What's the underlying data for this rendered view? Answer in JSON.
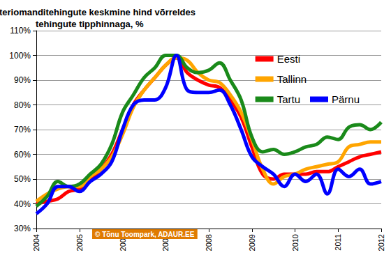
{
  "chart_data": {
    "type": "line",
    "title": "Korteriomanditehingute keskmine hind võrreldes\ntehingute tipphinnaga, %",
    "annotations": [
      "© Tõnu Toompark, ADAUR.EE"
    ],
    "x": [
      2004,
      2004.25,
      2004.5,
      2004.75,
      2005,
      2005.25,
      2005.5,
      2005.75,
      2006,
      2006.25,
      2006.5,
      2006.75,
      2007,
      2007.25,
      2007.5,
      2007.75,
      2008,
      2008.25,
      2008.5,
      2008.75,
      2009,
      2009.25,
      2009.5,
      2009.75,
      2010,
      2010.25,
      2010.5,
      2010.75,
      2011,
      2011.25,
      2011.5,
      2011.75,
      2012
    ],
    "series": [
      {
        "name": "Eesti",
        "color": "#ff0000",
        "values": [
          40,
          41,
          42,
          45,
          46,
          50,
          54,
          60,
          70,
          80,
          86,
          91,
          96,
          99,
          93,
          90,
          88,
          87,
          82,
          75,
          63,
          52,
          50,
          52,
          52,
          52,
          53,
          53,
          55,
          57,
          59,
          60,
          61
        ]
      },
      {
        "name": "Tallinn",
        "color": "#ffa500",
        "values": [
          41,
          44,
          46,
          47,
          47,
          51,
          54,
          59,
          68,
          79,
          86,
          91,
          96,
          99,
          98,
          93,
          90,
          89,
          84,
          77,
          66,
          54,
          48,
          51,
          52,
          54,
          55,
          56,
          57,
          63,
          64,
          65,
          65
        ]
      },
      {
        "name": "Tartu",
        "color": "#1a8a1a",
        "values": [
          39,
          43,
          49,
          47,
          48,
          52,
          56,
          64,
          77,
          84,
          91,
          95,
          100,
          100,
          95,
          93,
          94,
          97,
          90,
          82,
          67,
          61,
          62,
          60,
          61,
          63,
          64,
          67,
          66,
          71,
          72,
          70,
          73
        ]
      },
      {
        "name": "Pärnu",
        "color": "#0000ff",
        "values": [
          36,
          40,
          47,
          47,
          45,
          49,
          52,
          57,
          70,
          80,
          82,
          82,
          87,
          100,
          86,
          85,
          85,
          86,
          80,
          70,
          59,
          55,
          52,
          47,
          52,
          49,
          52,
          44,
          54,
          51,
          54,
          48,
          49
        ]
      }
    ],
    "xlim": [
      2004,
      2012
    ],
    "xticks": [
      2004,
      2005,
      2006,
      2007,
      2008,
      2009,
      2010,
      2011,
      2012
    ],
    "ylim": [
      30,
      110
    ],
    "yticks": [
      {
        "value": 30,
        "label": "30%"
      },
      {
        "value": 40,
        "label": "40%"
      },
      {
        "value": 50,
        "label": "50%"
      },
      {
        "value": 60,
        "label": "60%"
      },
      {
        "value": 70,
        "label": "70%"
      },
      {
        "value": 80,
        "label": "80%"
      },
      {
        "value": 90,
        "label": "90%"
      },
      {
        "value": 100,
        "label": "100%"
      },
      {
        "value": 110,
        "label": "110%"
      }
    ],
    "grid": true,
    "legend": "upper right"
  }
}
